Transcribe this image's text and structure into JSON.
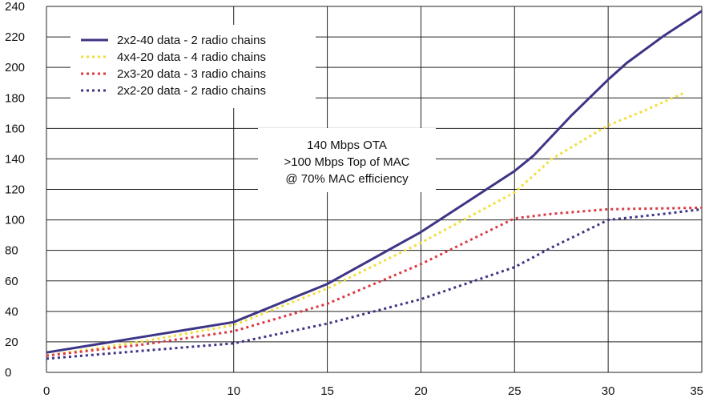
{
  "chart_data": {
    "type": "line",
    "title": "",
    "xlabel": "",
    "ylabel": "",
    "xlim": [
      0,
      35
    ],
    "ylim": [
      0,
      240
    ],
    "x_ticks": [
      0,
      10,
      15,
      20,
      25,
      30,
      35
    ],
    "y_ticks": [
      0,
      20,
      40,
      60,
      80,
      100,
      120,
      140,
      160,
      180,
      200,
      220,
      240
    ],
    "grid": true,
    "legend_position": "top-left",
    "annotation": [
      "140 Mbps OTA",
      ">100 Mbps Top of MAC",
      "@ 70% MAC efficiency"
    ],
    "series": [
      {
        "name": "2x2-40 data - 2 radio chains",
        "color": "#3d3585",
        "dash": "solid",
        "x": [
          0,
          5,
          10,
          15,
          20,
          25,
          26,
          28,
          30,
          31,
          33,
          35
        ],
        "y": [
          13,
          23,
          33,
          58,
          92,
          132,
          142,
          168,
          192,
          203,
          221,
          237
        ]
      },
      {
        "name": "4x4-20 data - 4 radio chains",
        "color": "#f2de3a",
        "dash": "dotted",
        "x": [
          0,
          5,
          10,
          15,
          20,
          25,
          27,
          30,
          32,
          34
        ],
        "y": [
          11,
          20,
          31,
          55,
          85,
          118,
          140,
          162,
          172,
          183
        ]
      },
      {
        "name": "2x3-20 data - 3 radio chains",
        "color": "#d93a45",
        "dash": "dotted",
        "x": [
          0,
          5,
          10,
          15,
          20,
          25,
          27,
          30,
          35
        ],
        "y": [
          11,
          18,
          27,
          45,
          71,
          101,
          104,
          107,
          108
        ]
      },
      {
        "name": "2x2-20 data - 2 radio chains",
        "color": "#3d3585",
        "dash": "dotted",
        "x": [
          0,
          5,
          10,
          15,
          20,
          25,
          27,
          30,
          33,
          35
        ],
        "y": [
          9,
          14,
          19,
          32,
          48,
          69,
          82,
          100,
          104,
          107
        ]
      }
    ]
  }
}
